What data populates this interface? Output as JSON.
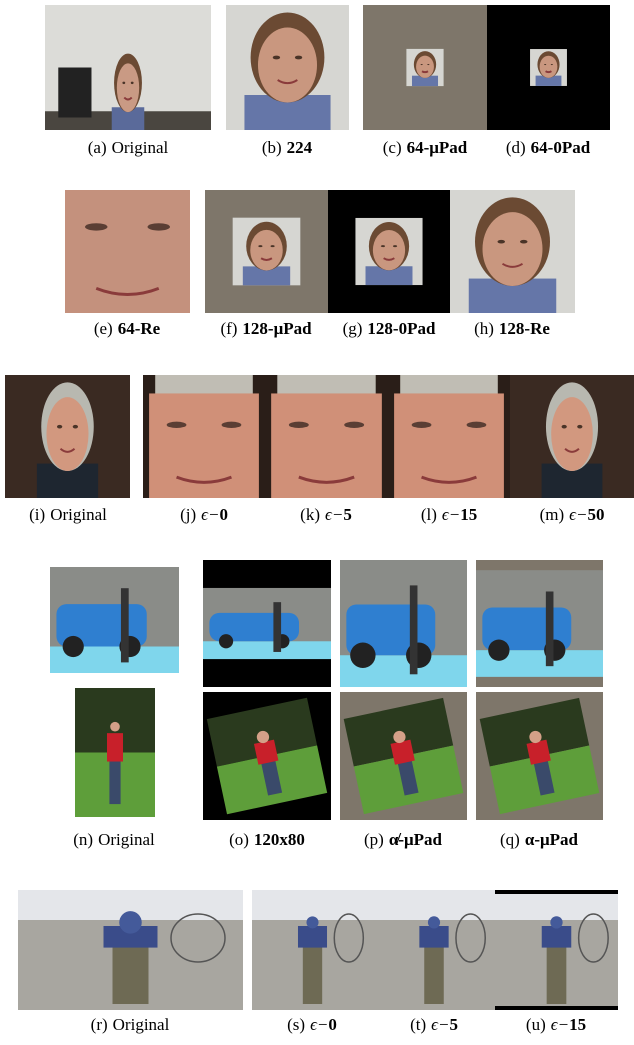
{
  "panels": [
    {
      "id": "(a)",
      "text": "Original"
    },
    {
      "id": "(b)",
      "text": "224",
      "bold": true
    },
    {
      "id": "(c)",
      "text": "64-μPad",
      "bold": true
    },
    {
      "id": "(d)",
      "text": "64-0Pad",
      "bold": true
    },
    {
      "id": "(e)",
      "text": "64-Re",
      "bold": true
    },
    {
      "id": "(f)",
      "text": "128-μPad",
      "bold": true
    },
    {
      "id": "(g)",
      "text": "128-0Pad",
      "bold": true
    },
    {
      "id": "(h)",
      "text": "128-Re",
      "bold": true
    },
    {
      "id": "(i)",
      "text": "Original"
    },
    {
      "id": "(j)",
      "prefix": "ϵ−",
      "text": "0",
      "bold": true
    },
    {
      "id": "(k)",
      "prefix": "ϵ−",
      "text": "5",
      "bold": true
    },
    {
      "id": "(l)",
      "prefix": "ϵ−",
      "text": "15",
      "bold": true
    },
    {
      "id": "(m)",
      "prefix": "ϵ−",
      "text": "50",
      "bold": true
    },
    {
      "id": "(n)",
      "text": "Original"
    },
    {
      "id": "(o)",
      "text": "120x80",
      "bold": true
    },
    {
      "id": "(p)",
      "text": "α̸-μPad",
      "bold": true
    },
    {
      "id": "(q)",
      "text": "α-μPad",
      "bold": true
    },
    {
      "id": "(r)",
      "text": "Original"
    },
    {
      "id": "(s)",
      "prefix": "ϵ−",
      "text": "0",
      "bold": true
    },
    {
      "id": "(t)",
      "prefix": "ϵ−",
      "text": "5",
      "bold": true
    },
    {
      "id": "(u)",
      "prefix": "ϵ−",
      "text": "15",
      "bold": true
    }
  ]
}
